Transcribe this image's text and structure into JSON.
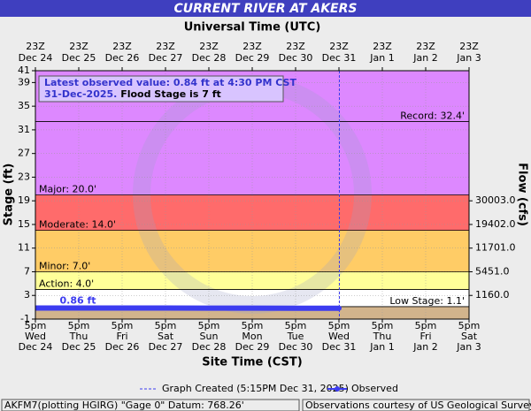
{
  "chart_data": {
    "type": "line",
    "title": "CURRENT RIVER AT AKERS",
    "top_axis_label": "Universal Time (UTC)",
    "x_label": "Site Time (CST)",
    "y_label": "Stage (ft)",
    "y2_label": "Flow (cfs)",
    "ylim": [
      -1,
      41
    ],
    "yticks": [
      -1,
      3,
      7,
      11,
      15,
      19,
      23,
      27,
      31,
      35,
      39,
      41
    ],
    "y2ticks": [
      {
        "value": 30003,
        "label": "30003.0",
        "stage": 19
      },
      {
        "value": 19402,
        "label": "19402.0",
        "stage": 15
      },
      {
        "value": 11701,
        "label": "11701.0",
        "stage": 11
      },
      {
        "value": 5451,
        "label": "5451.0",
        "stage": 7
      },
      {
        "value": 1160,
        "label": "1160.0",
        "stage": 3
      }
    ],
    "xlim": [
      0,
      10
    ],
    "xticks": [
      0,
      1,
      2,
      3,
      4,
      5,
      6,
      7,
      8,
      9,
      10
    ],
    "xtick_labels_top": [
      [
        "23Z",
        "Dec 24"
      ],
      [
        "23Z",
        "Dec 25"
      ],
      [
        "23Z",
        "Dec 26"
      ],
      [
        "23Z",
        "Dec 27"
      ],
      [
        "23Z",
        "Dec 28"
      ],
      [
        "23Z",
        "Dec 29"
      ],
      [
        "23Z",
        "Dec 30"
      ],
      [
        "23Z",
        "Dec 31"
      ],
      [
        "23Z",
        "Jan 1"
      ],
      [
        "23Z",
        "Jan 2"
      ],
      [
        "23Z",
        "Jan 3"
      ]
    ],
    "xtick_labels_bottom": [
      [
        "5pm",
        "Wed",
        "Dec 24"
      ],
      [
        "5pm",
        "Thu",
        "Dec 25"
      ],
      [
        "5pm",
        "Fri",
        "Dec 26"
      ],
      [
        "5pm",
        "Sat",
        "Dec 27"
      ],
      [
        "5pm",
        "Sun",
        "Dec 28"
      ],
      [
        "5pm",
        "Mon",
        "Dec 29"
      ],
      [
        "5pm",
        "Tue",
        "Dec 30"
      ],
      [
        "5pm",
        "Wed",
        "Dec 31"
      ],
      [
        "5pm",
        "Thu",
        "Jan 1"
      ],
      [
        "5pm",
        "Fri",
        "Jan 2"
      ],
      [
        "5pm",
        "Sat",
        "Jan 3"
      ]
    ],
    "grid": true,
    "below_color": "#d2b48c",
    "thresholds": [
      {
        "label": "Low Stage: 1.1'",
        "value": 1.1,
        "color": "#ffffff",
        "side": "right"
      },
      {
        "label": "Action: 4.0'",
        "value": 4.0,
        "color": "#ffff99",
        "side": "left"
      },
      {
        "label": "Minor: 7.0'",
        "value": 7.0,
        "color": "#ffcc66",
        "side": "left"
      },
      {
        "label": "Moderate: 14.0'",
        "value": 14.0,
        "color": "#ff6b6b",
        "side": "left"
      },
      {
        "label": "Major: 20.0'",
        "value": 20.0,
        "color": "#dd88ff",
        "side": "left"
      },
      {
        "label": "Record: 32.4'",
        "value": 32.4,
        "color": "#dd88ff",
        "side": "right"
      }
    ],
    "series": [
      {
        "name": "Observed",
        "color": "#3c3cf0",
        "x": [
          0,
          1,
          2,
          3,
          4,
          5,
          6,
          7
        ],
        "values": [
          0.86,
          0.86,
          0.86,
          0.86,
          0.85,
          0.85,
          0.84,
          0.84
        ]
      }
    ],
    "observed_annotation": "0.86 ft",
    "graph_created": {
      "name": "Graph Created (5:15PM Dec 31, 2025)",
      "x": 7.01
    },
    "info_line1": "Latest observed value: 0.84 ft at 4:30 PM CST",
    "info_line2": "31-Dec-2025.",
    "info_flood_stage": " Flood Stage is 7 ft",
    "footer_left": "AKFM7(plotting HGIRG) \"Gage 0\" Datum: 768.26'",
    "footer_right": "Observations courtesy of US Geological Survey"
  }
}
